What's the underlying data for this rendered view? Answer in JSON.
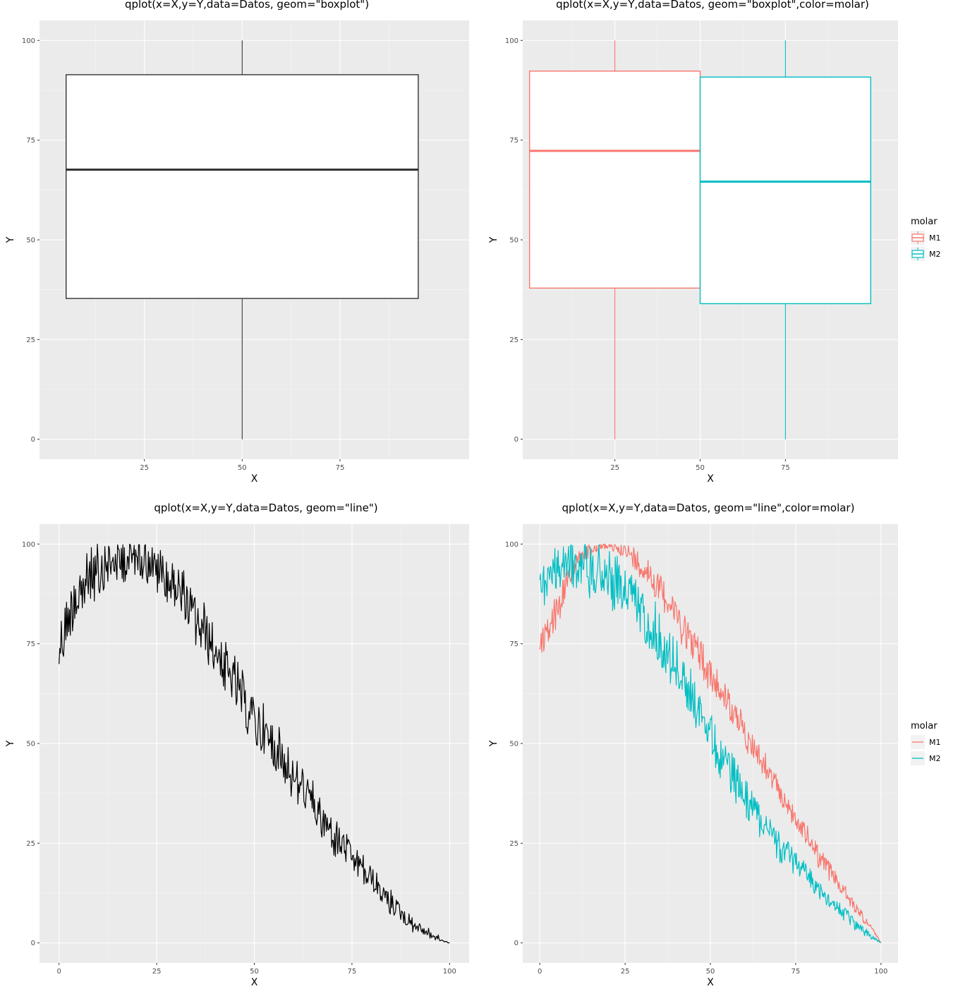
{
  "chart_data": [
    {
      "id": "boxplot",
      "type": "boxplot",
      "title": "qplot(x=X,y=Y,data=Datos, geom=\"boxplot\")",
      "xlabel": "X",
      "ylabel": "Y",
      "xlim": [
        -1.8,
        108
      ],
      "ylim": [
        -5,
        105
      ],
      "xticks": [
        25,
        50,
        75
      ],
      "yticks": [
        0,
        25,
        50,
        75,
        100
      ],
      "boxes": [
        {
          "x": 50,
          "xmin": 5,
          "xmax": 95,
          "whisker_low": 0,
          "q1": 35.3,
          "median": 67.6,
          "q3": 91.4,
          "whisker_high": 100,
          "color": "#333333"
        }
      ]
    },
    {
      "id": "boxplot-molar",
      "type": "boxplot",
      "title": "qplot(x=X,y=Y,data=Datos, geom=\"boxplot\",color=molar)",
      "xlabel": "X",
      "ylabel": "Y",
      "xlim": [
        -2,
        108
      ],
      "ylim": [
        -5,
        105
      ],
      "xticks": [
        25,
        50,
        75
      ],
      "yticks": [
        0,
        25,
        50,
        75,
        100
      ],
      "legend": {
        "title": "molar",
        "entries": [
          {
            "label": "M1",
            "color": "#F8766D"
          },
          {
            "label": "M2",
            "color": "#00BFC4"
          }
        ]
      },
      "boxes": [
        {
          "name": "M1",
          "x": 25,
          "xmin": 0,
          "xmax": 50,
          "whisker_low": 0,
          "q1": 37.9,
          "median": 72.3,
          "q3": 92.3,
          "whisker_high": 100,
          "color": "#F8766D"
        },
        {
          "name": "M2",
          "x": 75,
          "xmin": 50,
          "xmax": 100,
          "whisker_low": 0,
          "q1": 34.0,
          "median": 64.6,
          "q3": 90.8,
          "whisker_high": 100,
          "color": "#00BFC4"
        }
      ]
    },
    {
      "id": "line",
      "type": "line",
      "title": "qplot(x=X,y=Y,data=Datos, geom=\"line\")",
      "xlabel": "X",
      "ylabel": "Y",
      "xlim": [
        -5,
        105
      ],
      "ylim": [
        -5,
        105
      ],
      "xticks": [
        0,
        25,
        50,
        75,
        100
      ],
      "yticks": [
        0,
        25,
        50,
        75,
        100
      ],
      "series": [
        {
          "color": "#000000",
          "x": [
            0,
            2,
            4,
            6,
            8,
            10,
            12,
            14,
            16,
            18,
            20,
            22,
            24,
            26,
            28,
            30,
            32,
            34,
            36,
            38,
            40,
            42,
            44,
            46,
            48,
            50,
            52,
            54,
            56,
            58,
            60,
            62,
            64,
            66,
            68,
            70,
            72,
            74,
            76,
            78,
            80,
            82,
            84,
            86,
            88,
            90,
            92,
            94,
            96,
            98,
            100
          ],
          "y": [
            76.5,
            85,
            92,
            94,
            96,
            97.5,
            98.5,
            99,
            99.5,
            99.6,
            99.5,
            99,
            98,
            96.5,
            94.5,
            92.5,
            90,
            87,
            84,
            80.5,
            77,
            73.5,
            70,
            66.5,
            63,
            60,
            57,
            54,
            51,
            48,
            45,
            42,
            39,
            36,
            33,
            30.5,
            28,
            25.5,
            23,
            20.5,
            18,
            15.5,
            13,
            10.5,
            8.5,
            6.5,
            5,
            3.5,
            2.2,
            1,
            0
          ],
          "noise_band": [
            12,
            14,
            15,
            15,
            14,
            13,
            12,
            11,
            10,
            10,
            10,
            10,
            11,
            11,
            12,
            12,
            12,
            12,
            12,
            12,
            12,
            12,
            12,
            12,
            12,
            12,
            12,
            12,
            11,
            11,
            11,
            10,
            10,
            10,
            9,
            9,
            9,
            8,
            8,
            7,
            7,
            6,
            6,
            5,
            5,
            4,
            3,
            2.5,
            2,
            1,
            0
          ]
        }
      ]
    },
    {
      "id": "line-molar",
      "type": "line",
      "title": "qplot(x=X,y=Y,data=Datos, geom=\"line\",color=molar)",
      "xlabel": "X",
      "ylabel": "Y",
      "xlim": [
        -5,
        105
      ],
      "ylim": [
        -5,
        105
      ],
      "xticks": [
        0,
        25,
        50,
        75,
        100
      ],
      "yticks": [
        0,
        25,
        50,
        75,
        100
      ],
      "legend": {
        "title": "molar",
        "entries": [
          {
            "label": "M1",
            "color": "#F8766D"
          },
          {
            "label": "M2",
            "color": "#00BFC4"
          }
        ]
      },
      "series": [
        {
          "name": "M1",
          "color": "#F8766D",
          "x": [
            0,
            2,
            4,
            6,
            8,
            10,
            12,
            14,
            16,
            18,
            20,
            22,
            24,
            26,
            28,
            30,
            32,
            34,
            36,
            38,
            40,
            42,
            44,
            46,
            48,
            50,
            52,
            54,
            56,
            58,
            60,
            62,
            64,
            66,
            68,
            70,
            72,
            74,
            76,
            78,
            80,
            82,
            84,
            86,
            88,
            90,
            92,
            94,
            96,
            98,
            100
          ],
          "y": [
            76.5,
            80,
            84,
            88,
            93,
            96,
            98,
            99,
            99.5,
            99.8,
            99.9,
            99.8,
            99.5,
            99,
            98,
            96.5,
            95,
            93,
            90.5,
            88,
            85,
            82,
            79,
            76,
            73,
            70,
            67,
            64,
            61,
            58,
            55,
            52,
            49,
            46,
            43,
            40,
            37,
            34,
            31,
            28.5,
            26,
            23,
            20.5,
            18,
            15.5,
            13,
            10.5,
            8,
            5.5,
            3,
            0
          ],
          "noise_band": [
            6,
            8,
            10,
            10,
            8,
            5,
            4,
            3,
            2,
            2,
            2,
            2,
            3,
            4,
            5,
            6,
            7,
            8,
            8,
            8,
            8,
            8,
            8,
            8,
            8,
            8,
            8,
            7,
            7,
            7,
            7,
            6,
            6,
            6,
            6,
            6,
            6,
            5,
            5,
            5,
            5,
            5,
            4,
            4,
            4,
            3,
            3,
            2,
            2,
            1,
            0
          ]
        },
        {
          "name": "M2",
          "color": "#00BFC4",
          "x": [
            0,
            2,
            4,
            6,
            8,
            10,
            12,
            14,
            16,
            18,
            20,
            22,
            24,
            26,
            28,
            30,
            32,
            34,
            36,
            38,
            40,
            42,
            44,
            46,
            48,
            50,
            52,
            54,
            56,
            58,
            60,
            62,
            64,
            66,
            68,
            70,
            72,
            74,
            76,
            78,
            80,
            82,
            84,
            86,
            88,
            90,
            92,
            94,
            96,
            98,
            100
          ],
          "y": [
            92,
            94,
            96,
            97,
            98,
            98.5,
            98.5,
            98,
            97.5,
            97,
            96,
            94.5,
            93,
            91,
            89,
            87,
            84.5,
            82,
            79,
            76,
            73,
            69.5,
            66,
            62.5,
            59,
            55.5,
            52,
            49,
            46,
            43,
            40,
            37,
            34.5,
            32,
            29.5,
            27,
            25,
            23,
            21,
            19,
            17,
            15,
            13,
            11,
            9,
            7.5,
            6,
            4.5,
            3,
            1.5,
            0
          ],
          "noise_band": [
            10,
            10,
            10,
            10,
            10,
            10,
            11,
            12,
            12,
            12,
            12,
            12,
            12,
            12,
            12,
            12,
            12,
            12,
            12,
            12,
            12,
            11,
            11,
            11,
            10,
            10,
            10,
            9,
            9,
            9,
            8,
            8,
            8,
            7,
            7,
            7,
            6,
            6,
            6,
            5,
            5,
            5,
            4,
            4,
            3,
            3,
            3,
            2,
            2,
            1,
            0
          ]
        }
      ]
    }
  ]
}
